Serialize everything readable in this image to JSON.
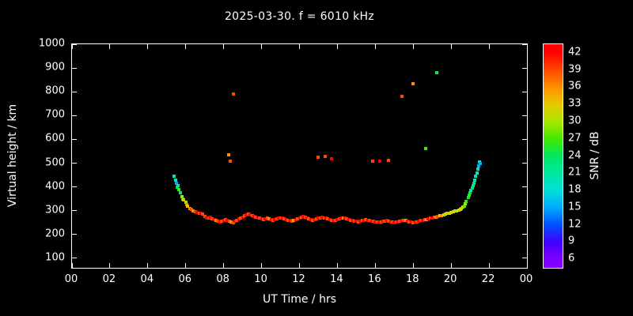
{
  "title": "2025-03-30. f = 6010 kHz",
  "chart_data": {
    "type": "scatter",
    "title": "2025-03-30. f = 6010 kHz",
    "xlabel": "UT Time / hrs",
    "ylabel": "Virtual height / km",
    "xlim": [
      0,
      24
    ],
    "ylim": [
      60,
      1000
    ],
    "xticks": [
      {
        "v": 0,
        "label": "00"
      },
      {
        "v": 2,
        "label": "02"
      },
      {
        "v": 4,
        "label": "04"
      },
      {
        "v": 6,
        "label": "06"
      },
      {
        "v": 8,
        "label": "08"
      },
      {
        "v": 10,
        "label": "10"
      },
      {
        "v": 12,
        "label": "12"
      },
      {
        "v": 14,
        "label": "14"
      },
      {
        "v": 16,
        "label": "16"
      },
      {
        "v": 18,
        "label": "18"
      },
      {
        "v": 20,
        "label": "20"
      },
      {
        "v": 22,
        "label": "22"
      },
      {
        "v": 24,
        "label": "00"
      }
    ],
    "yticks": [
      100,
      200,
      300,
      400,
      500,
      600,
      700,
      800,
      900,
      1000
    ],
    "background": "#000000",
    "frame_color": "#ffffff",
    "grid": false,
    "colorbar": {
      "label": "SNR / dB",
      "vmin": 4.5,
      "vmax": 43.5,
      "ticks": [
        6,
        9,
        12,
        15,
        18,
        21,
        24,
        27,
        30,
        33,
        36,
        39,
        42
      ],
      "stops": [
        {
          "v": 6,
          "c": "#7f00ff"
        },
        {
          "v": 9,
          "c": "#4000ff"
        },
        {
          "v": 12,
          "c": "#0050ff"
        },
        {
          "v": 15,
          "c": "#00a8ff"
        },
        {
          "v": 18,
          "c": "#00e0d8"
        },
        {
          "v": 21,
          "c": "#00e8a0"
        },
        {
          "v": 24,
          "c": "#00e860"
        },
        {
          "v": 27,
          "c": "#44e800"
        },
        {
          "v": 30,
          "c": "#a8e800"
        },
        {
          "v": 33,
          "c": "#e8c800"
        },
        {
          "v": 36,
          "c": "#ff9000"
        },
        {
          "v": 39,
          "c": "#ff4800"
        },
        {
          "v": 42,
          "c": "#ff0000"
        }
      ]
    },
    "points": [
      [
        5.4,
        445,
        18
      ],
      [
        5.45,
        430,
        21
      ],
      [
        5.5,
        415,
        15
      ],
      [
        5.55,
        400,
        24
      ],
      [
        5.6,
        405,
        21
      ],
      [
        5.65,
        390,
        27
      ],
      [
        5.7,
        375,
        24
      ],
      [
        5.8,
        360,
        30
      ],
      [
        5.85,
        350,
        27
      ],
      [
        5.9,
        345,
        33
      ],
      [
        6.0,
        335,
        30
      ],
      [
        6.05,
        325,
        36
      ],
      [
        6.1,
        318,
        33
      ],
      [
        6.2,
        310,
        36
      ],
      [
        6.3,
        305,
        39
      ],
      [
        6.4,
        300,
        36
      ],
      [
        6.5,
        295,
        39
      ],
      [
        6.6,
        292,
        42
      ],
      [
        6.7,
        290,
        39
      ],
      [
        6.8,
        288,
        42
      ],
      [
        6.9,
        285,
        39
      ],
      [
        7.0,
        275,
        39
      ],
      [
        7.1,
        270,
        42
      ],
      [
        7.2,
        268,
        39
      ],
      [
        7.3,
        272,
        42
      ],
      [
        7.4,
        265,
        39
      ],
      [
        7.5,
        262,
        42
      ],
      [
        7.6,
        258,
        36
      ],
      [
        7.7,
        255,
        39
      ],
      [
        7.8,
        252,
        42
      ],
      [
        7.9,
        255,
        39
      ],
      [
        8.0,
        258,
        42
      ],
      [
        8.1,
        262,
        39
      ],
      [
        8.2,
        260,
        42
      ],
      [
        8.3,
        255,
        39
      ],
      [
        8.4,
        252,
        36
      ],
      [
        8.5,
        250,
        39
      ],
      [
        8.6,
        255,
        42
      ],
      [
        8.7,
        260,
        39
      ],
      [
        8.8,
        265,
        42
      ],
      [
        8.9,
        268,
        39
      ],
      [
        9.0,
        272,
        42
      ],
      [
        9.1,
        278,
        39
      ],
      [
        9.2,
        282,
        42
      ],
      [
        9.3,
        285,
        39
      ],
      [
        9.4,
        282,
        42
      ],
      [
        9.5,
        278,
        39
      ],
      [
        9.6,
        275,
        42
      ],
      [
        9.7,
        272,
        39
      ],
      [
        9.8,
        270,
        42
      ],
      [
        9.9,
        268,
        39
      ],
      [
        10.0,
        265,
        42
      ],
      [
        10.1,
        262,
        39
      ],
      [
        10.2,
        265,
        42
      ],
      [
        10.3,
        268,
        39
      ],
      [
        10.4,
        265,
        36
      ],
      [
        10.5,
        262,
        42
      ],
      [
        10.6,
        260,
        39
      ],
      [
        10.7,
        262,
        42
      ],
      [
        10.8,
        265,
        39
      ],
      [
        10.9,
        268,
        42
      ],
      [
        11.0,
        270,
        39
      ],
      [
        11.1,
        268,
        42
      ],
      [
        11.2,
        265,
        39
      ],
      [
        11.3,
        262,
        42
      ],
      [
        11.4,
        260,
        39
      ],
      [
        11.5,
        258,
        42
      ],
      [
        11.6,
        255,
        39
      ],
      [
        11.7,
        258,
        36
      ],
      [
        11.8,
        262,
        42
      ],
      [
        11.9,
        265,
        39
      ],
      [
        12.0,
        268,
        42
      ],
      [
        12.1,
        272,
        39
      ],
      [
        12.2,
        275,
        42
      ],
      [
        12.3,
        272,
        39
      ],
      [
        12.4,
        268,
        42
      ],
      [
        12.5,
        265,
        39
      ],
      [
        12.6,
        262,
        42
      ],
      [
        12.7,
        260,
        39
      ],
      [
        12.8,
        262,
        42
      ],
      [
        12.9,
        265,
        39
      ],
      [
        13.0,
        268,
        42
      ],
      [
        13.1,
        270,
        39
      ],
      [
        13.2,
        272,
        42
      ],
      [
        13.3,
        270,
        39
      ],
      [
        13.4,
        268,
        42
      ],
      [
        13.5,
        265,
        39
      ],
      [
        13.6,
        262,
        42
      ],
      [
        13.7,
        260,
        39
      ],
      [
        13.8,
        258,
        42
      ],
      [
        13.9,
        260,
        39
      ],
      [
        14.0,
        262,
        42
      ],
      [
        14.1,
        265,
        39
      ],
      [
        14.2,
        268,
        42
      ],
      [
        14.3,
        270,
        36
      ],
      [
        14.4,
        268,
        42
      ],
      [
        14.5,
        265,
        39
      ],
      [
        14.6,
        262,
        42
      ],
      [
        14.7,
        260,
        39
      ],
      [
        14.8,
        258,
        42
      ],
      [
        14.9,
        256,
        39
      ],
      [
        15.0,
        255,
        42
      ],
      [
        15.1,
        254,
        39
      ],
      [
        15.2,
        255,
        42
      ],
      [
        15.3,
        258,
        39
      ],
      [
        15.4,
        260,
        42
      ],
      [
        15.5,
        262,
        39
      ],
      [
        15.6,
        260,
        42
      ],
      [
        15.7,
        258,
        39
      ],
      [
        15.8,
        256,
        42
      ],
      [
        15.9,
        255,
        39
      ],
      [
        16.0,
        254,
        42
      ],
      [
        16.1,
        253,
        39
      ],
      [
        16.2,
        252,
        42
      ],
      [
        16.3,
        253,
        39
      ],
      [
        16.4,
        255,
        42
      ],
      [
        16.5,
        256,
        39
      ],
      [
        16.6,
        258,
        42
      ],
      [
        16.7,
        256,
        39
      ],
      [
        16.8,
        254,
        42
      ],
      [
        16.9,
        252,
        39
      ],
      [
        17.0,
        250,
        42
      ],
      [
        17.1,
        252,
        39
      ],
      [
        17.2,
        254,
        42
      ],
      [
        17.3,
        256,
        39
      ],
      [
        17.4,
        258,
        42
      ],
      [
        17.5,
        260,
        39
      ],
      [
        17.6,
        258,
        36
      ],
      [
        17.7,
        256,
        42
      ],
      [
        17.8,
        254,
        39
      ],
      [
        17.9,
        252,
        42
      ],
      [
        18.0,
        250,
        39
      ],
      [
        18.1,
        252,
        42
      ],
      [
        18.2,
        254,
        39
      ],
      [
        18.3,
        256,
        42
      ],
      [
        18.4,
        258,
        39
      ],
      [
        18.5,
        260,
        42
      ],
      [
        18.6,
        262,
        39
      ],
      [
        18.7,
        264,
        36
      ],
      [
        18.8,
        266,
        42
      ],
      [
        18.9,
        268,
        39
      ],
      [
        19.0,
        270,
        42
      ],
      [
        19.1,
        272,
        39
      ],
      [
        19.2,
        274,
        36
      ],
      [
        19.3,
        276,
        39
      ],
      [
        19.4,
        278,
        33
      ],
      [
        19.5,
        280,
        36
      ],
      [
        19.6,
        282,
        33
      ],
      [
        19.7,
        285,
        30
      ],
      [
        19.8,
        288,
        33
      ],
      [
        19.9,
        290,
        30
      ],
      [
        20.0,
        292,
        33
      ],
      [
        20.1,
        295,
        30
      ],
      [
        20.2,
        298,
        33
      ],
      [
        20.3,
        300,
        30
      ],
      [
        20.4,
        302,
        33
      ],
      [
        20.5,
        305,
        30
      ],
      [
        20.55,
        310,
        33
      ],
      [
        20.6,
        315,
        30
      ],
      [
        20.7,
        320,
        27
      ],
      [
        20.75,
        330,
        30
      ],
      [
        20.8,
        340,
        27
      ],
      [
        20.9,
        355,
        24
      ],
      [
        20.95,
        365,
        27
      ],
      [
        21.0,
        375,
        24
      ],
      [
        21.05,
        385,
        21
      ],
      [
        21.1,
        395,
        24
      ],
      [
        21.15,
        405,
        21
      ],
      [
        21.2,
        415,
        24
      ],
      [
        21.25,
        430,
        18
      ],
      [
        21.3,
        445,
        21
      ],
      [
        21.35,
        460,
        18
      ],
      [
        21.4,
        475,
        21
      ],
      [
        21.45,
        490,
        15
      ],
      [
        21.5,
        505,
        18
      ],
      [
        21.55,
        500,
        15
      ],
      [
        8.25,
        535,
        36
      ],
      [
        8.35,
        510,
        39
      ],
      [
        8.5,
        790,
        39
      ],
      [
        13.0,
        525,
        39
      ],
      [
        13.35,
        530,
        39
      ],
      [
        13.7,
        520,
        42
      ],
      [
        15.85,
        510,
        39
      ],
      [
        16.25,
        510,
        42
      ],
      [
        16.7,
        512,
        39
      ],
      [
        17.4,
        780,
        39
      ],
      [
        18.0,
        835,
        36
      ],
      [
        18.65,
        560,
        27
      ],
      [
        19.25,
        880,
        24
      ]
    ]
  }
}
